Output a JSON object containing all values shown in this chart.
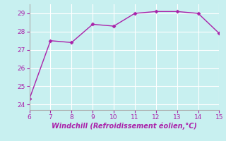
{
  "x": [
    6,
    7,
    8,
    9,
    10,
    11,
    12,
    13,
    14,
    15
  ],
  "y": [
    24.3,
    27.5,
    27.4,
    28.4,
    28.3,
    29.0,
    29.1,
    29.1,
    29.0,
    27.9
  ],
  "line_color": "#aa22aa",
  "marker": "D",
  "marker_size": 2.5,
  "xlabel": "Windchill (Refroidissement éolien,°C)",
  "xlim": [
    6,
    15
  ],
  "ylim": [
    23.7,
    29.5
  ],
  "xticks": [
    6,
    7,
    8,
    9,
    10,
    11,
    12,
    13,
    14,
    15
  ],
  "yticks": [
    24,
    25,
    26,
    27,
    28,
    29
  ],
  "bg_color": "#c8f0f0",
  "grid_color": "#ffffff",
  "spine_color": "#aaaaaa",
  "tick_label_fontsize": 6.5,
  "xlabel_fontsize": 7,
  "linewidth": 1.0
}
